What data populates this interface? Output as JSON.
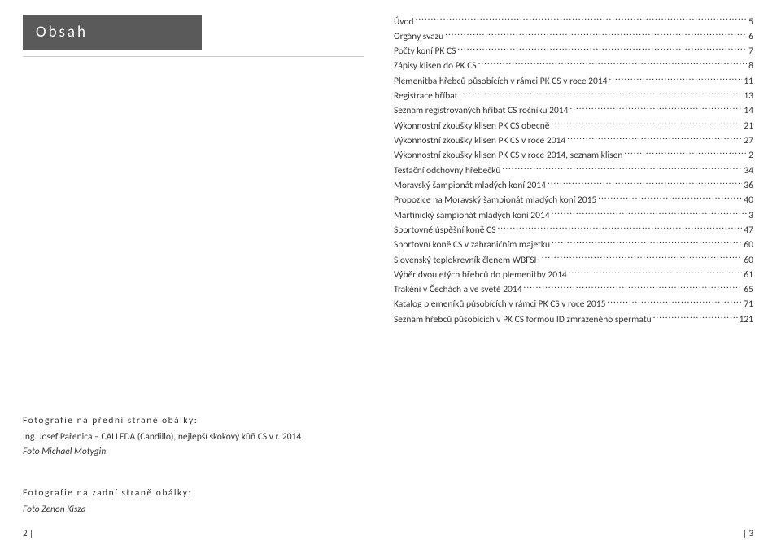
{
  "title": "Obsah",
  "toc": [
    {
      "label": "Úvod",
      "page": "5"
    },
    {
      "label": "Orgány svazu",
      "page": "6"
    },
    {
      "label": "Počty koní PK CS",
      "page": "7"
    },
    {
      "label": "Zápisy klisen do PK CS",
      "page": "8"
    },
    {
      "label": "Plemenitba hřebců působících v rámci PK CS v roce 2014",
      "page": "11"
    },
    {
      "label": "Registrace hříbat",
      "page": "13"
    },
    {
      "label": "Seznam registrovaných hříbat CS ročníku 2014",
      "page": "14"
    },
    {
      "label": "Výkonnostní zkoušky klisen PK CS obecně",
      "page": "21"
    },
    {
      "label": "Výkonnostní zkoušky klisen PK CS v roce 2014",
      "page": "27"
    },
    {
      "label": "Výkonnostní zkoušky klisen PK CS v roce 2014, seznam klisen",
      "page": "2"
    },
    {
      "label": "Testační odchovny hřebečků",
      "page": "34"
    },
    {
      "label": "Moravský šampionát mladých koní 2014",
      "page": "36"
    },
    {
      "label": "Propozice na Moravský šampionát mladých koní 2015",
      "page": "40"
    },
    {
      "label": "Martinický šampionát mladých koní 2014",
      "page": "3"
    },
    {
      "label": "Sportovně úspěšní koně CS",
      "page": "47"
    },
    {
      "label": "Sportovní koně CS v zahraničním majetku",
      "page": "60"
    },
    {
      "label": "Slovenský teplokrevník členem WBFSH",
      "page": "60"
    },
    {
      "label": "Výběr dvouletých hřebců do plemenitby 2014",
      "page": "61"
    },
    {
      "label": "Trakéni v Čechách a ve světě 2014",
      "page": "65"
    },
    {
      "label": "Katalog plemeníků působících v rámci PK CS v roce 2015",
      "page": "71"
    },
    {
      "label": "Seznam hřebců působících v PK CS formou ID zmrazeného spermatu",
      "page": "121"
    }
  ],
  "credits": {
    "front_heading": "Fotografie na přední straně obálky:",
    "front_line": "Ing. Josef Pařenica – CALLEDA (Candillo), nejlepší skokový kůň CS v r. 2014",
    "front_photo": "Foto Michael Motygin",
    "back_heading": "Fotografie na zadní straně obálky:",
    "back_photo": "Foto Zenon Kisza"
  },
  "page_left_num": "2 |",
  "page_right_num": "| 3",
  "colors": {
    "title_bg": "#5a5a5a",
    "title_fg": "#ffffff",
    "text": "#333333",
    "rule": "#cccccc",
    "bg": "#ffffff"
  }
}
